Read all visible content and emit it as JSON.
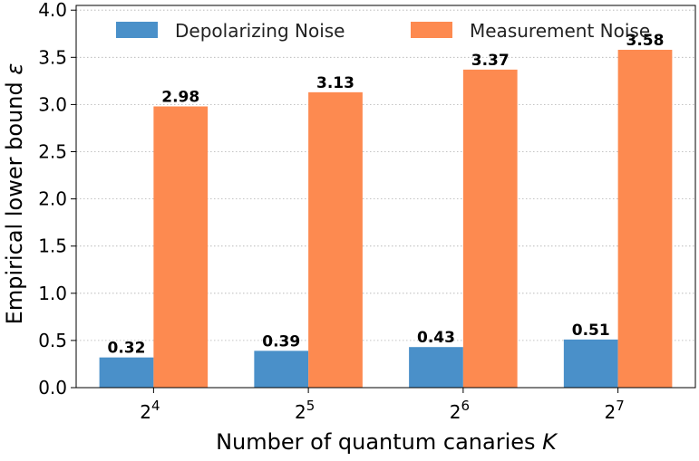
{
  "chart_data": {
    "type": "bar",
    "title": "",
    "categories": [
      "2^4",
      "2^5",
      "2^6",
      "2^7"
    ],
    "category_bases": [
      "2",
      "2",
      "2",
      "2"
    ],
    "category_exponents": [
      "4",
      "5",
      "6",
      "7"
    ],
    "series": [
      {
        "name": "Depolarizing Noise",
        "color": "#4a90c9",
        "values": [
          0.32,
          0.39,
          0.43,
          0.51
        ],
        "labels": [
          "0.32",
          "0.39",
          "0.43",
          "0.51"
        ]
      },
      {
        "name": "Measurement Noise",
        "color": "#fd8a50",
        "values": [
          2.98,
          3.13,
          3.37,
          3.58
        ],
        "labels": [
          "2.98",
          "3.13",
          "3.37",
          "3.58"
        ]
      }
    ],
    "xlabel": "Number of quantum canaries",
    "xlabel_var": "K",
    "ylabel": "Empirical lower bound",
    "ylabel_var": "ε",
    "ylim": [
      0,
      4.05
    ],
    "yticks": [
      "0.0",
      "0.5",
      "1.0",
      "1.5",
      "2.0",
      "2.5",
      "3.0",
      "3.5",
      "4.0"
    ],
    "grid": "horizontal dotted",
    "legend_position": "top"
  }
}
